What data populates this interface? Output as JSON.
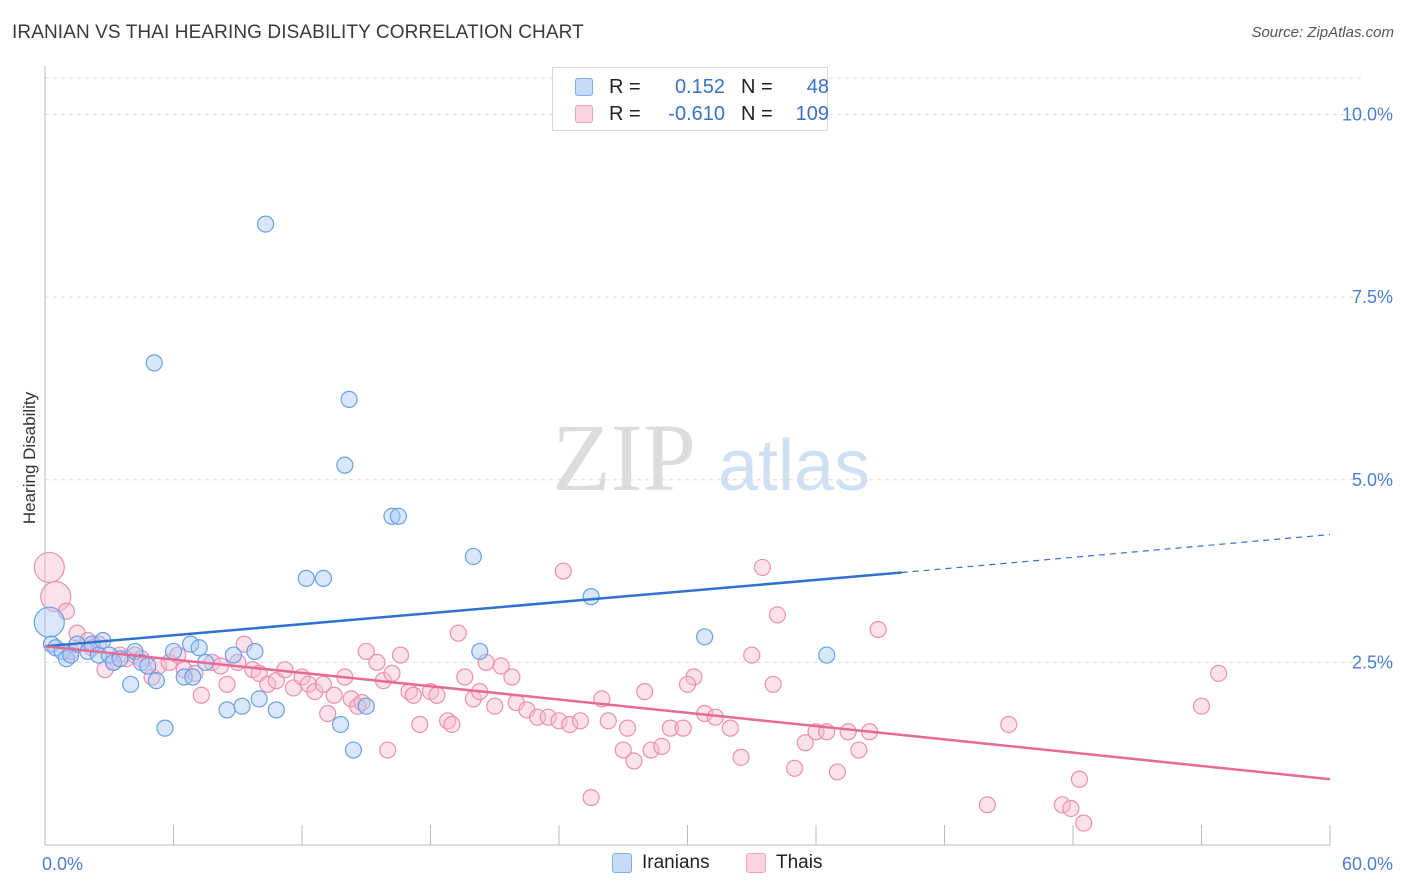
{
  "title": "IRANIAN VS THAI HEARING DISABILITY CORRELATION CHART",
  "source": "Source: ZipAtlas.com",
  "watermark": {
    "zip": "ZIP",
    "atlas": "atlas"
  },
  "legend": {
    "rows": [
      {
        "r_label": "R =",
        "r_value": "0.152",
        "n_label": "N =",
        "n_value": "48",
        "color": "#7fb0ee"
      },
      {
        "r_label": "R =",
        "r_value": "-0.610",
        "n_label": "N =",
        "n_value": "109",
        "color": "#f2a3bf"
      }
    ]
  },
  "colors": {
    "iranians": "#7fb0ee",
    "thais": "#f2a3bf",
    "blue_line": "#2f72d0",
    "pink_line": "#e66a95",
    "tick_text": "#4a7fd0"
  },
  "chart_data": {
    "type": "scatter",
    "title": "IRANIAN VS THAI HEARING DISABILITY CORRELATION CHART",
    "xlabel": "",
    "ylabel": "Hearing Disability",
    "xlim": [
      0,
      60
    ],
    "ylim": [
      0,
      10.5
    ],
    "x_tick_labels": [
      "0.0%",
      "60.0%"
    ],
    "y_tick_labels": [
      "2.5%",
      "5.0%",
      "7.5%",
      "10.0%"
    ],
    "y_ticks": [
      2.5,
      5.0,
      7.5,
      10.0
    ],
    "grid": "horizontal dashed",
    "legend_position": "bottom-center",
    "series": [
      {
        "name": "Iranians",
        "points": [
          [
            0.2,
            3.05
          ],
          [
            0.3,
            2.75
          ],
          [
            0.5,
            2.7
          ],
          [
            0.8,
            2.65
          ],
          [
            1.0,
            2.55
          ],
          [
            1.2,
            2.6
          ],
          [
            1.5,
            2.75
          ],
          [
            2.0,
            2.65
          ],
          [
            2.2,
            2.75
          ],
          [
            2.5,
            2.6
          ],
          [
            2.7,
            2.8
          ],
          [
            3.0,
            2.6
          ],
          [
            3.2,
            2.5
          ],
          [
            3.5,
            2.55
          ],
          [
            4.0,
            2.2
          ],
          [
            4.2,
            2.65
          ],
          [
            4.5,
            2.5
          ],
          [
            4.8,
            2.45
          ],
          [
            5.2,
            2.25
          ],
          [
            5.6,
            1.6
          ],
          [
            6.0,
            2.65
          ],
          [
            6.5,
            2.3
          ],
          [
            6.8,
            2.75
          ],
          [
            7.2,
            2.7
          ],
          [
            7.5,
            2.5
          ],
          [
            8.5,
            1.85
          ],
          [
            8.8,
            2.6
          ],
          [
            9.2,
            1.9
          ],
          [
            9.8,
            2.65
          ],
          [
            10.0,
            2.0
          ],
          [
            10.3,
            8.5
          ],
          [
            10.8,
            1.85
          ],
          [
            12.2,
            3.65
          ],
          [
            13.0,
            3.65
          ],
          [
            13.8,
            1.65
          ],
          [
            14.0,
            5.2
          ],
          [
            14.2,
            6.1
          ],
          [
            14.4,
            1.3
          ],
          [
            15.0,
            1.9
          ],
          [
            16.2,
            4.5
          ],
          [
            16.5,
            4.5
          ],
          [
            20.0,
            3.95
          ],
          [
            20.3,
            2.65
          ],
          [
            25.5,
            3.4
          ],
          [
            30.8,
            2.85
          ],
          [
            36.5,
            2.6
          ],
          [
            5.1,
            6.6
          ],
          [
            6.9,
            2.3
          ]
        ],
        "trend": {
          "x_start": 0,
          "y_start": 2.72,
          "x_solid_end": 40,
          "y_solid_end": 3.73,
          "x_dashed_end": 60,
          "y_dashed_end": 4.25
        }
      },
      {
        "name": "Thais",
        "points": [
          [
            0.2,
            3.8
          ],
          [
            0.5,
            3.4
          ],
          [
            1.0,
            3.2
          ],
          [
            1.5,
            2.9
          ],
          [
            2.0,
            2.8
          ],
          [
            2.2,
            2.7
          ],
          [
            2.5,
            2.75
          ],
          [
            2.8,
            2.4
          ],
          [
            3.2,
            2.5
          ],
          [
            3.5,
            2.6
          ],
          [
            3.8,
            2.55
          ],
          [
            4.2,
            2.6
          ],
          [
            4.5,
            2.55
          ],
          [
            5.0,
            2.3
          ],
          [
            5.3,
            2.45
          ],
          [
            5.8,
            2.5
          ],
          [
            6.2,
            2.6
          ],
          [
            6.5,
            2.4
          ],
          [
            7.0,
            2.35
          ],
          [
            7.3,
            2.05
          ],
          [
            7.8,
            2.5
          ],
          [
            8.2,
            2.45
          ],
          [
            8.5,
            2.2
          ],
          [
            9.0,
            2.5
          ],
          [
            9.3,
            2.75
          ],
          [
            9.7,
            2.4
          ],
          [
            10.0,
            2.35
          ],
          [
            10.4,
            2.2
          ],
          [
            10.8,
            2.25
          ],
          [
            11.2,
            2.4
          ],
          [
            11.6,
            2.15
          ],
          [
            12.0,
            2.3
          ],
          [
            12.3,
            2.2
          ],
          [
            12.6,
            2.1
          ],
          [
            13.0,
            2.2
          ],
          [
            13.5,
            2.05
          ],
          [
            14.0,
            2.3
          ],
          [
            14.3,
            2.0
          ],
          [
            14.6,
            1.9
          ],
          [
            15.0,
            2.65
          ],
          [
            15.5,
            2.5
          ],
          [
            15.8,
            2.25
          ],
          [
            16.2,
            2.35
          ],
          [
            16.6,
            2.6
          ],
          [
            17.0,
            2.1
          ],
          [
            17.5,
            1.65
          ],
          [
            18.0,
            2.1
          ],
          [
            18.3,
            2.05
          ],
          [
            18.8,
            1.7
          ],
          [
            19.3,
            2.9
          ],
          [
            19.6,
            2.3
          ],
          [
            20.0,
            2.0
          ],
          [
            20.3,
            2.1
          ],
          [
            20.6,
            2.5
          ],
          [
            21.0,
            1.9
          ],
          [
            21.3,
            2.45
          ],
          [
            22.0,
            1.95
          ],
          [
            22.5,
            1.85
          ],
          [
            23.0,
            1.75
          ],
          [
            23.5,
            1.75
          ],
          [
            24.0,
            1.7
          ],
          [
            24.5,
            1.65
          ],
          [
            25.0,
            1.7
          ],
          [
            25.5,
            0.65
          ],
          [
            26.0,
            2.0
          ],
          [
            26.3,
            1.7
          ],
          [
            27.0,
            1.3
          ],
          [
            27.5,
            1.15
          ],
          [
            28.0,
            2.1
          ],
          [
            28.3,
            1.3
          ],
          [
            28.8,
            1.35
          ],
          [
            29.2,
            1.6
          ],
          [
            29.8,
            1.6
          ],
          [
            30.3,
            2.3
          ],
          [
            30.8,
            1.8
          ],
          [
            31.3,
            1.75
          ],
          [
            32.0,
            1.6
          ],
          [
            32.5,
            1.2
          ],
          [
            33.0,
            2.6
          ],
          [
            33.5,
            3.8
          ],
          [
            34.2,
            3.15
          ],
          [
            35.0,
            1.05
          ],
          [
            35.5,
            1.4
          ],
          [
            36.0,
            1.55
          ],
          [
            36.5,
            1.55
          ],
          [
            37.0,
            1.0
          ],
          [
            37.5,
            1.55
          ],
          [
            38.0,
            1.3
          ],
          [
            38.5,
            1.55
          ],
          [
            38.9,
            2.95
          ],
          [
            44.0,
            0.55
          ],
          [
            45.0,
            1.65
          ],
          [
            47.5,
            0.55
          ],
          [
            47.9,
            0.5
          ],
          [
            48.3,
            0.9
          ],
          [
            48.5,
            0.3
          ],
          [
            54.0,
            1.9
          ],
          [
            54.8,
            2.35
          ],
          [
            13.2,
            1.8
          ],
          [
            14.8,
            1.95
          ],
          [
            17.2,
            2.05
          ],
          [
            24.2,
            3.75
          ],
          [
            21.8,
            2.3
          ],
          [
            27.2,
            1.6
          ],
          [
            30.0,
            2.2
          ],
          [
            34.0,
            2.2
          ],
          [
            16.0,
            1.3
          ],
          [
            1.2,
            2.65
          ],
          [
            19.0,
            1.65
          ]
        ],
        "trend": {
          "x_start": 0,
          "y_start": 2.72,
          "x_end": 60,
          "y_end": 0.9
        }
      }
    ]
  },
  "bottom_legend": {
    "iranians": "Iranians",
    "thais": "Thais"
  }
}
